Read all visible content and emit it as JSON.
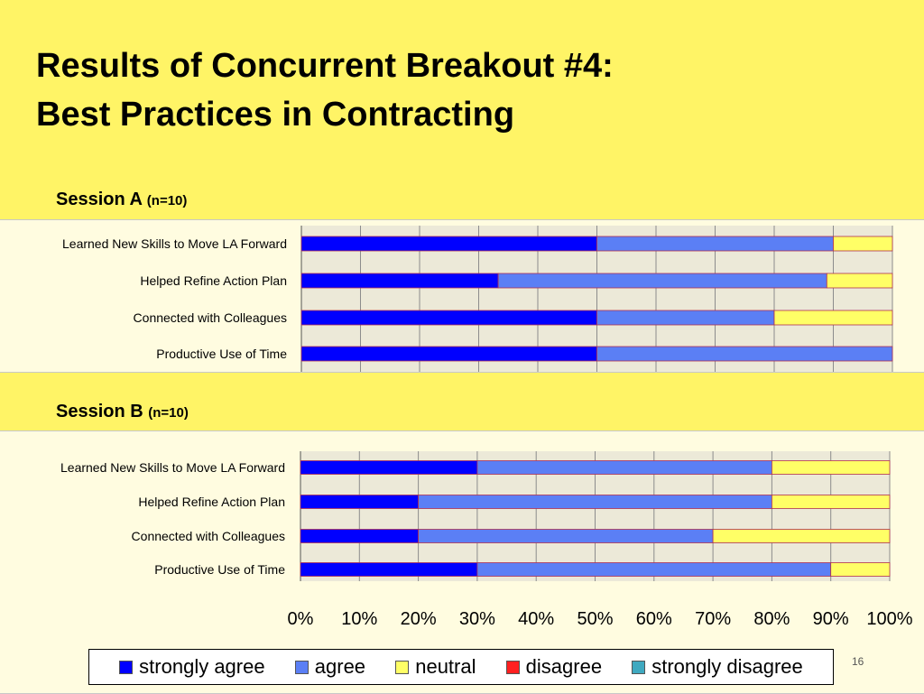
{
  "title": {
    "line1": "Results of Concurrent Breakout #4:",
    "line2": "Best Practices in Contracting"
  },
  "sessions": [
    {
      "label": "Session A",
      "n": "(n=10)"
    },
    {
      "label": "Session B",
      "n": "(n=10)"
    }
  ],
  "legend": [
    {
      "label": "strongly agree",
      "color": "#0000ff"
    },
    {
      "label": "agree",
      "color": "#5b7ff5"
    },
    {
      "label": "neutral",
      "color": "#ffff66"
    },
    {
      "label": "disagree",
      "color": "#ff2020"
    },
    {
      "label": "strongly disagree",
      "color": "#3fa9c0"
    }
  ],
  "page_number": "16",
  "chart_data": [
    {
      "type": "bar",
      "stacked": true,
      "orientation": "horizontal",
      "title": "Session A (n=10)",
      "categories": [
        "Learned New Skills to Move LA Forward",
        "Helped Refine Action Plan",
        "Connected with Colleagues",
        "Productive Use of Time"
      ],
      "series": [
        {
          "name": "strongly agree",
          "values": [
            50,
            33.3,
            50,
            50
          ]
        },
        {
          "name": "agree",
          "values": [
            40,
            55.6,
            30,
            50
          ]
        },
        {
          "name": "neutral",
          "values": [
            10,
            11.1,
            20,
            0
          ]
        },
        {
          "name": "disagree",
          "values": [
            0,
            0,
            0,
            0
          ]
        },
        {
          "name": "strongly disagree",
          "values": [
            0,
            0,
            0,
            0
          ]
        }
      ],
      "xlim": [
        0,
        100
      ],
      "grid": true
    },
    {
      "type": "bar",
      "stacked": true,
      "orientation": "horizontal",
      "title": "Session B (n=10)",
      "categories": [
        "Learned New Skills to Move LA Forward",
        "Helped Refine Action Plan",
        "Connected with Colleagues",
        "Productive Use of Time"
      ],
      "series": [
        {
          "name": "strongly agree",
          "values": [
            30,
            20,
            20,
            30
          ]
        },
        {
          "name": "agree",
          "values": [
            50,
            60,
            50,
            60
          ]
        },
        {
          "name": "neutral",
          "values": [
            20,
            20,
            30,
            10
          ]
        },
        {
          "name": "disagree",
          "values": [
            0,
            0,
            0,
            0
          ]
        },
        {
          "name": "strongly disagree",
          "values": [
            0,
            0,
            0,
            0
          ]
        }
      ],
      "xlim": [
        0,
        100
      ],
      "xticks": [
        "0%",
        "10%",
        "20%",
        "30%",
        "40%",
        "50%",
        "60%",
        "70%",
        "80%",
        "90%",
        "100%"
      ],
      "grid": true,
      "legend_position": "bottom"
    }
  ]
}
